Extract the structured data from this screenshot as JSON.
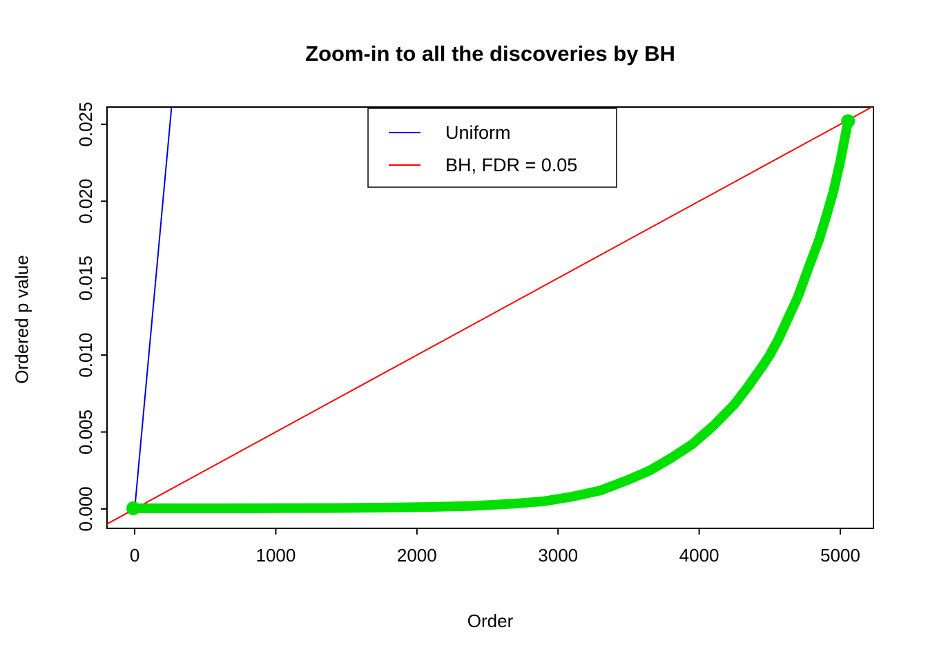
{
  "chart_data": {
    "type": "line",
    "title": "Zoom-in to all the discoveries by BH",
    "xlabel": "Order",
    "ylabel": "Ordered p value",
    "xlim": [
      -196,
      5235
    ],
    "ylim": [
      -0.00126,
      0.02612
    ],
    "grid": false,
    "background": "#ffffff",
    "axis_color": "#000000",
    "xticks": {
      "values": [
        0,
        1000,
        2000,
        3000,
        4000,
        5000
      ],
      "labels": [
        "0",
        "1000",
        "2000",
        "3000",
        "4000",
        "5000"
      ]
    },
    "yticks": {
      "values": [
        0.0,
        0.005,
        0.01,
        0.015,
        0.02,
        0.025
      ],
      "labels": [
        "0.000",
        "0.005",
        "0.010",
        "0.015",
        "0.020",
        "0.025"
      ]
    },
    "legend": {
      "position": "top-center",
      "entries": [
        {
          "label": "Uniform",
          "color": "#0000DD"
        },
        {
          "label": "BH, FDR = 0.05",
          "color": "#FF0000"
        }
      ]
    },
    "series": [
      {
        "name": "Uniform",
        "kind": "reference-line",
        "color": "#0000DD",
        "width": 2,
        "points": [
          [
            0,
            0
          ],
          [
            280,
            0.028
          ]
        ]
      },
      {
        "name": "BH, FDR = 0.05",
        "kind": "reference-line",
        "color": "#FF0000",
        "width": 2,
        "points": [
          [
            -300,
            -0.0015
          ],
          [
            5300,
            0.0265
          ]
        ]
      },
      {
        "name": "Ordered p values (BH discoveries)",
        "kind": "thick-curve",
        "color": "#00DF00",
        "width": 14,
        "end_dot_radius": 10,
        "points": [
          [
            -10,
            4e-05
          ],
          [
            200,
            4e-05
          ],
          [
            600,
            4e-05
          ],
          [
            1000,
            5e-05
          ],
          [
            1400,
            6e-05
          ],
          [
            1800,
            9e-05
          ],
          [
            2100,
            0.00013
          ],
          [
            2400,
            0.0002
          ],
          [
            2700,
            0.00035
          ],
          [
            2900,
            0.0005
          ],
          [
            3100,
            0.0008
          ],
          [
            3300,
            0.0012
          ],
          [
            3500,
            0.0019
          ],
          [
            3650,
            0.0025
          ],
          [
            3800,
            0.0033
          ],
          [
            3950,
            0.0042
          ],
          [
            4100,
            0.0054
          ],
          [
            4250,
            0.0068
          ],
          [
            4350,
            0.008
          ],
          [
            4450,
            0.0093
          ],
          [
            4500,
            0.01
          ],
          [
            4560,
            0.011
          ],
          [
            4620,
            0.0122
          ],
          [
            4700,
            0.0138
          ],
          [
            4780,
            0.0158
          ],
          [
            4850,
            0.0175
          ],
          [
            4900,
            0.019
          ],
          [
            4950,
            0.0206
          ],
          [
            5000,
            0.0226
          ],
          [
            5030,
            0.024
          ],
          [
            5055,
            0.0252
          ]
        ]
      }
    ]
  }
}
